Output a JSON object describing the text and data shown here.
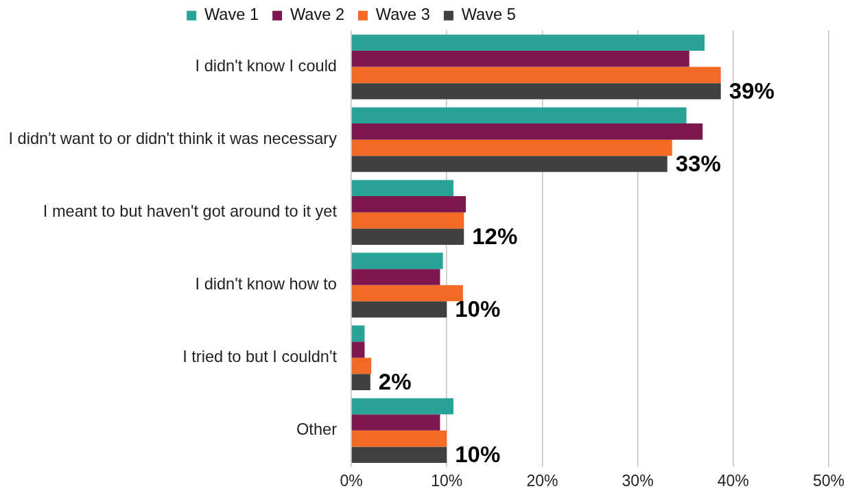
{
  "chart_data": {
    "type": "bar",
    "orientation": "horizontal",
    "categories": [
      "I didn't know I could",
      "I didn't want to or didn't think it was necessary",
      "I meant to but haven't got around to it yet",
      "I didn't know how to",
      "I tried to but I couldn't",
      "Other"
    ],
    "series": [
      {
        "name": "Wave 1",
        "color": "#29a397",
        "values": [
          37.0,
          35.1,
          10.7,
          9.6,
          1.4,
          10.7
        ]
      },
      {
        "name": "Wave 2",
        "color": "#7f174f",
        "values": [
          35.4,
          36.8,
          12.0,
          9.3,
          1.4,
          9.3
        ]
      },
      {
        "name": "Wave 3",
        "color": "#f26a24",
        "values": [
          38.7,
          33.6,
          11.8,
          11.7,
          2.1,
          10.0
        ]
      },
      {
        "name": "Wave 5",
        "color": "#404040",
        "values": [
          38.7,
          33.1,
          11.8,
          10.0,
          2.0,
          10.0
        ],
        "value_labels": [
          "39%",
          "33%",
          "12%",
          "10%",
          "2%",
          "10%"
        ]
      }
    ],
    "xlim": [
      0,
      50
    ],
    "xticks": [
      {
        "value": 0,
        "label": "0%"
      },
      {
        "value": 10,
        "label": "10%"
      },
      {
        "value": 20,
        "label": "20%"
      },
      {
        "value": 30,
        "label": "30%"
      },
      {
        "value": 40,
        "label": "40%"
      },
      {
        "value": 50,
        "label": "50%"
      }
    ],
    "grid": "x",
    "legend": "top"
  }
}
